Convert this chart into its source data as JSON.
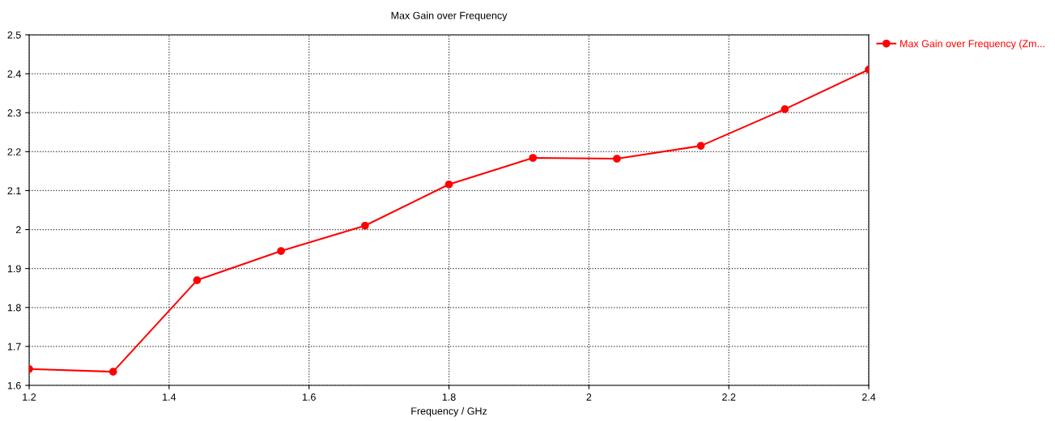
{
  "chart_data": {
    "type": "line",
    "title": "Max Gain over Frequency",
    "xlabel": "Frequency / GHz",
    "x": [
      1.2,
      1.32,
      1.44,
      1.56,
      1.68,
      1.8,
      1.92,
      2.04,
      2.16,
      2.28,
      2.4
    ],
    "series": [
      {
        "name": "Max Gain over Frequency (Zm...",
        "color": "#ff0000",
        "values": [
          1.642,
          1.635,
          1.87,
          1.945,
          2.01,
          2.116,
          2.184,
          2.182,
          2.215,
          2.309,
          2.411
        ]
      }
    ],
    "xlim": [
      1.2,
      2.4
    ],
    "xticks": [
      1.2,
      1.4,
      1.6,
      1.8,
      2,
      2.2,
      2.4
    ],
    "ylim": [
      1.6,
      2.5
    ],
    "yticks": [
      1.6,
      1.7,
      1.8,
      1.9,
      2,
      2.1,
      2.2,
      2.3,
      2.4,
      2.5
    ],
    "grid": true,
    "legend": "top right",
    "marker": "circle",
    "line_style": "solid"
  }
}
